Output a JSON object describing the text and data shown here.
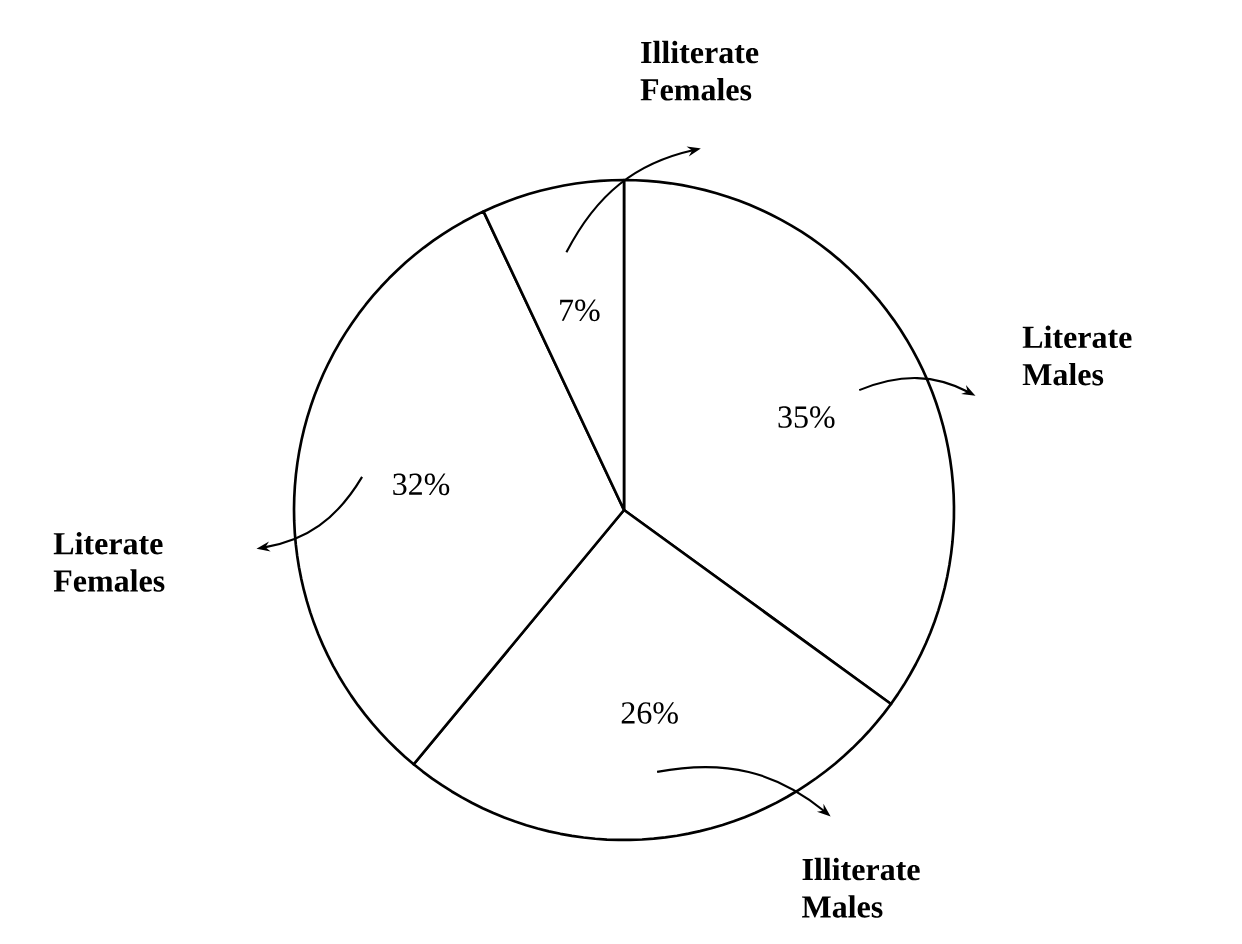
{
  "chart_data": {
    "type": "pie",
    "categories": [
      "Literate Males",
      "Illiterate Males",
      "Literate Females",
      "Illiterate Females"
    ],
    "values": [
      35,
      26,
      32,
      7
    ],
    "colors": [
      "#ffffff",
      "#ffffff",
      "#ffffff",
      "#ffffff"
    ],
    "value_labels": [
      "35%",
      "26%",
      "32%",
      "7%"
    ]
  }
}
